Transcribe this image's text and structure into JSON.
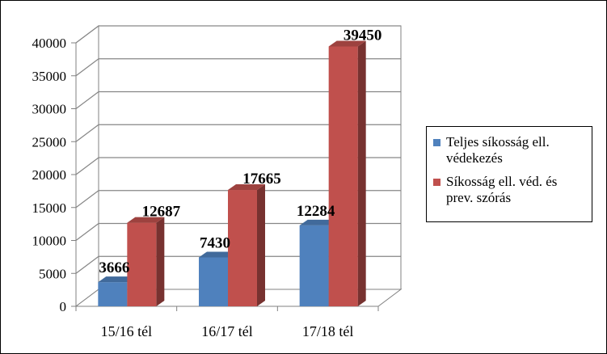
{
  "chart_data": {
    "type": "bar",
    "style": "3d-clustered-column",
    "categories": [
      "15/16 tél",
      "16/17 tél",
      "17/18 tél"
    ],
    "series": [
      {
        "name": "Teljes síkosság ell. védekezés",
        "color": "#4F81BD",
        "values": [
          3666,
          7430,
          12284
        ]
      },
      {
        "name": "Síkosság ell. véd. és prev. szórás",
        "color": "#C0504D",
        "values": [
          12687,
          17665,
          39450
        ]
      }
    ],
    "data_labels": {
      "series0": [
        "3666",
        "7430",
        "12284"
      ],
      "series1": [
        "12687",
        "17665",
        "39450"
      ]
    },
    "y_ticks": [
      "0",
      "5000",
      "10000",
      "15000",
      "20000",
      "25000",
      "30000",
      "35000",
      "40000"
    ],
    "ylim": [
      0,
      40000
    ],
    "grid": true,
    "legend_position": "right",
    "title": "",
    "xlabel": "",
    "ylabel": ""
  }
}
